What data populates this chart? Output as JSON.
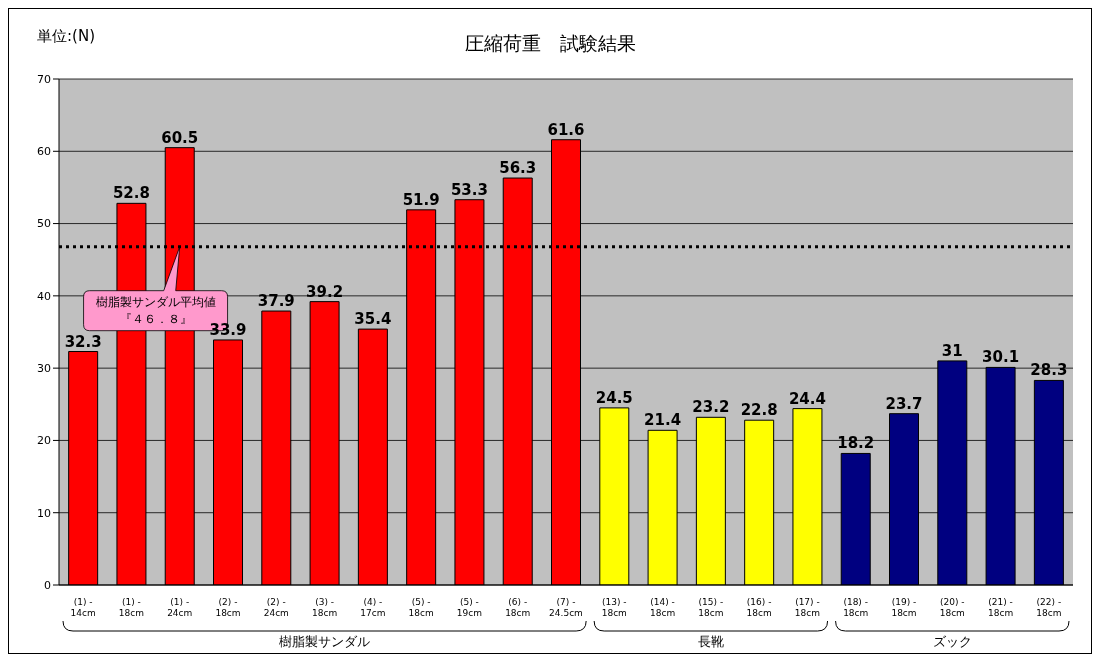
{
  "chart_data": {
    "type": "bar",
    "title": "圧縮荷重　試験結果",
    "ylabel": "単位:(N)",
    "categories": [
      "(1) -\n14cm",
      "(1) -\n18cm",
      "(1) -\n24cm",
      "(2) -\n18cm",
      "(2) -\n24cm",
      "(3) -\n18cm",
      "(4) -\n17cm",
      "(5) -\n18cm",
      "(5) -\n19cm",
      "(6) -\n18cm",
      "(7) -\n24.5cm",
      "(13) -\n18cm",
      "(14) -\n18cm",
      "(15) -\n18cm",
      "(16) -\n18cm",
      "(17) -\n18cm",
      "(18) -\n18cm",
      "(19) -\n18cm",
      "(20) -\n18cm",
      "(21) -\n18cm",
      "(22) -\n18cm"
    ],
    "values": [
      32.3,
      52.8,
      60.5,
      33.9,
      37.9,
      39.2,
      35.4,
      51.9,
      53.3,
      56.3,
      61.6,
      24.5,
      21.4,
      23.2,
      22.8,
      24.4,
      18.2,
      23.7,
      31,
      30.1,
      28.3
    ],
    "colors": [
      "#ff0000",
      "#ff0000",
      "#ff0000",
      "#ff0000",
      "#ff0000",
      "#ff0000",
      "#ff0000",
      "#ff0000",
      "#ff0000",
      "#ff0000",
      "#ff0000",
      "#ffff00",
      "#ffff00",
      "#ffff00",
      "#ffff00",
      "#ffff00",
      "#000080",
      "#000080",
      "#000080",
      "#000080",
      "#000080"
    ],
    "ylim": [
      0,
      70
    ],
    "yticks": [
      0,
      10,
      20,
      30,
      40,
      50,
      60,
      70
    ],
    "grid": "y",
    "data_labels": true,
    "legend": false,
    "ref_lines": [
      {
        "axis": "y",
        "value": 46.8,
        "label": "樹脂製サンダル平均値『４６．８』",
        "line_style": "dotted",
        "color": "#000000"
      }
    ],
    "annotations": [
      "樹脂製サンダル",
      "長靴",
      "ズック"
    ]
  }
}
